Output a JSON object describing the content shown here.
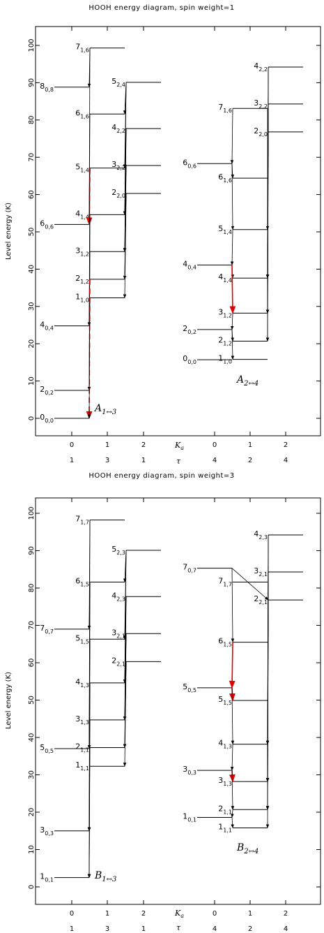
{
  "panels": [
    {
      "title": "HOOH energy diagram, spin weight=1",
      "ylabel": "Level energy (K)",
      "yticks": [
        "0",
        "10",
        "20",
        "30",
        "40",
        "50",
        "60",
        "70",
        "80",
        "90",
        "100"
      ],
      "ka_label": "K",
      "ka_sub": "a",
      "tau_label": "τ",
      "ka_ticks": [
        "0",
        "1",
        "2",
        "0",
        "1",
        "2"
      ],
      "tau_ticks": [
        "1",
        "3",
        "1",
        "4",
        "2",
        "4"
      ],
      "band_labels": [
        {
          "main": "A",
          "sub": "1↔3"
        },
        {
          "main": "A",
          "sub": "2↔4"
        }
      ],
      "levels_left": [
        {
          "n": "0",
          "sub": "0,0",
          "E": 0,
          "col": 0
        },
        {
          "n": "2",
          "sub": "0,2",
          "E": 7.5,
          "col": 0
        },
        {
          "n": "4",
          "sub": "0,4",
          "E": 24.8,
          "col": 0
        },
        {
          "n": "6",
          "sub": "0,6",
          "E": 52,
          "col": 0
        },
        {
          "n": "8",
          "sub": "0,8",
          "E": 88.8,
          "col": 0
        },
        {
          "n": "1",
          "sub": "1,0",
          "E": 32.3,
          "col": 1
        },
        {
          "n": "2",
          "sub": "1,2",
          "E": 37.3,
          "col": 1
        },
        {
          "n": "3",
          "sub": "1,2",
          "E": 44.7,
          "col": 1
        },
        {
          "n": "4",
          "sub": "1,4",
          "E": 54.6,
          "col": 1
        },
        {
          "n": "5",
          "sub": "1,4",
          "E": 67.1,
          "col": 1
        },
        {
          "n": "6",
          "sub": "1,6",
          "E": 81.6,
          "col": 1
        },
        {
          "n": "7",
          "sub": "1,6",
          "E": 99.3,
          "col": 1
        },
        {
          "n": "2",
          "sub": "2,0",
          "E": 60.3,
          "col": 2
        },
        {
          "n": "3",
          "sub": "2,2",
          "E": 67.8,
          "col": 2
        },
        {
          "n": "4",
          "sub": "2,2",
          "E": 77.7,
          "col": 2
        },
        {
          "n": "5",
          "sub": "2,4",
          "E": 90.1,
          "col": 2
        }
      ],
      "levels_right": [
        {
          "n": "0",
          "sub": "0,0",
          "E": 15.7,
          "col": 3
        },
        {
          "n": "2",
          "sub": "0,2",
          "E": 23.8,
          "col": 3
        },
        {
          "n": "4",
          "sub": "0,4",
          "E": 41.1,
          "col": 3
        },
        {
          "n": "6",
          "sub": "0,6",
          "E": 68.3,
          "col": 3
        },
        {
          "n": "1",
          "sub": "1,0",
          "E": 15.8,
          "col": 4
        },
        {
          "n": "2",
          "sub": "1,2",
          "E": 20.7,
          "col": 4
        },
        {
          "n": "3",
          "sub": "1,2",
          "E": 28.2,
          "col": 4
        },
        {
          "n": "4",
          "sub": "1,4",
          "E": 37.6,
          "col": 4
        },
        {
          "n": "5",
          "sub": "1,4",
          "E": 50.6,
          "col": 4
        },
        {
          "n": "6",
          "sub": "1,6",
          "E": 64.4,
          "col": 4
        },
        {
          "n": "7",
          "sub": "1,6",
          "E": 83.1,
          "col": 4
        },
        {
          "n": "2",
          "sub": "2,0",
          "E": 76.8,
          "col": 5
        },
        {
          "n": "3",
          "sub": "2,2",
          "E": 84.3,
          "col": 5
        },
        {
          "n": "4",
          "sub": "2,2",
          "E": 94.2,
          "col": 5
        }
      ]
    },
    {
      "title": "HOOH energy diagram, spin weight=3",
      "ylabel": "Level energy (K)",
      "yticks": [
        "0",
        "10",
        "20",
        "30",
        "40",
        "50",
        "60",
        "70",
        "80",
        "90",
        "100"
      ],
      "ka_label": "K",
      "ka_sub": "a",
      "tau_label": "τ",
      "ka_ticks": [
        "0",
        "1",
        "2",
        "0",
        "1",
        "2"
      ],
      "tau_ticks": [
        "1",
        "3",
        "1",
        "4",
        "2",
        "4"
      ],
      "band_labels": [
        {
          "main": "B",
          "sub": "1↔3"
        },
        {
          "main": "B",
          "sub": "2↔4"
        }
      ],
      "levels_left": [
        {
          "n": "1",
          "sub": "0,1",
          "E": 2.5,
          "col": 0
        },
        {
          "n": "3",
          "sub": "0,3",
          "E": 15,
          "col": 0
        },
        {
          "n": "5",
          "sub": "0,5",
          "E": 37,
          "col": 0
        },
        {
          "n": "7",
          "sub": "0,7",
          "E": 69,
          "col": 0
        },
        {
          "n": "1",
          "sub": "1,1",
          "E": 32.3,
          "col": 1
        },
        {
          "n": "2",
          "sub": "1,1",
          "E": 37.3,
          "col": 1
        },
        {
          "n": "3",
          "sub": "1,3",
          "E": 44.7,
          "col": 1
        },
        {
          "n": "4",
          "sub": "1,3",
          "E": 54.6,
          "col": 1
        },
        {
          "n": "5",
          "sub": "1,5",
          "E": 66.3,
          "col": 1
        },
        {
          "n": "6",
          "sub": "1,5",
          "E": 81.6,
          "col": 1
        },
        {
          "n": "7",
          "sub": "1,7",
          "E": 98.2,
          "col": 1
        },
        {
          "n": "2",
          "sub": "2,1",
          "E": 60.3,
          "col": 2
        },
        {
          "n": "3",
          "sub": "2,1",
          "E": 67.8,
          "col": 2
        },
        {
          "n": "4",
          "sub": "2,3",
          "E": 77.7,
          "col": 2
        },
        {
          "n": "5",
          "sub": "2,3",
          "E": 90.1,
          "col": 2
        }
      ],
      "levels_right": [
        {
          "n": "1",
          "sub": "0,1",
          "E": 18.6,
          "col": 3
        },
        {
          "n": "3",
          "sub": "0,3",
          "E": 31.2,
          "col": 3
        },
        {
          "n": "5",
          "sub": "0,5",
          "E": 53.3,
          "col": 3
        },
        {
          "n": "7",
          "sub": "0,7",
          "E": 85.3,
          "col": 3
        },
        {
          "n": "1",
          "sub": "1,1",
          "E": 15.8,
          "col": 4
        },
        {
          "n": "2",
          "sub": "1,1",
          "E": 20.7,
          "col": 4
        },
        {
          "n": "3",
          "sub": "1,3",
          "E": 28.2,
          "col": 4
        },
        {
          "n": "4",
          "sub": "1,3",
          "E": 38.2,
          "col": 4
        },
        {
          "n": "5",
          "sub": "1,5",
          "E": 49.9,
          "col": 4
        },
        {
          "n": "6",
          "sub": "1,5",
          "E": 65.5,
          "col": 4
        },
        {
          "n": "7",
          "sub": "1,7",
          "E": 81.6,
          "col": 4
        },
        {
          "n": "2",
          "sub": "2,1",
          "E": 76.8,
          "col": 5
        },
        {
          "n": "3",
          "sub": "2,1",
          "E": 84.3,
          "col": 5
        },
        {
          "n": "4",
          "sub": "2,3",
          "E": 94.2,
          "col": 5
        }
      ]
    }
  ],
  "colors": {
    "axis": "#000000",
    "arrow": "#000000",
    "highlight": "#e00000"
  }
}
